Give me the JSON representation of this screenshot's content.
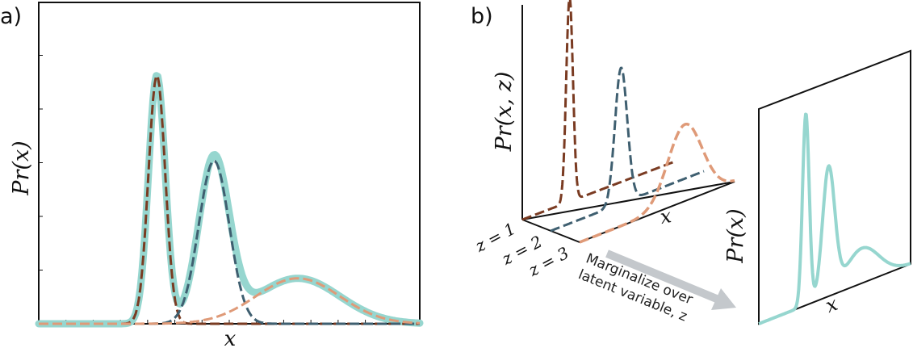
{
  "panel_a": {
    "label": "a)",
    "x_label": "x",
    "y_label": "Pr(x)"
  },
  "panel_b": {
    "label": "b)",
    "joint_label": "Pr(x, z)",
    "x_label": "x",
    "z_labels": [
      "z = 1",
      "z = 2",
      "z = 3"
    ],
    "arrow_text": [
      "Marginalize over",
      "latent variable, z"
    ],
    "marginal_y_label": "Pr(x)",
    "marginal_x_label": "x"
  },
  "colors": {
    "mixture": "#96d6cf",
    "component_1": "#7a3b22",
    "component_2": "#3f5f70",
    "component_3": "#df9a78",
    "arrow": "#c4c8cc",
    "frame": "#111111"
  },
  "chart_data": {
    "type": "line",
    "components": [
      {
        "mean": 0.31,
        "sd": 0.022,
        "height": 0.93
      },
      {
        "mean": 0.46,
        "sd": 0.04,
        "height": 0.61
      },
      {
        "mean": 0.68,
        "sd": 0.11,
        "height": 0.17
      }
    ]
  }
}
